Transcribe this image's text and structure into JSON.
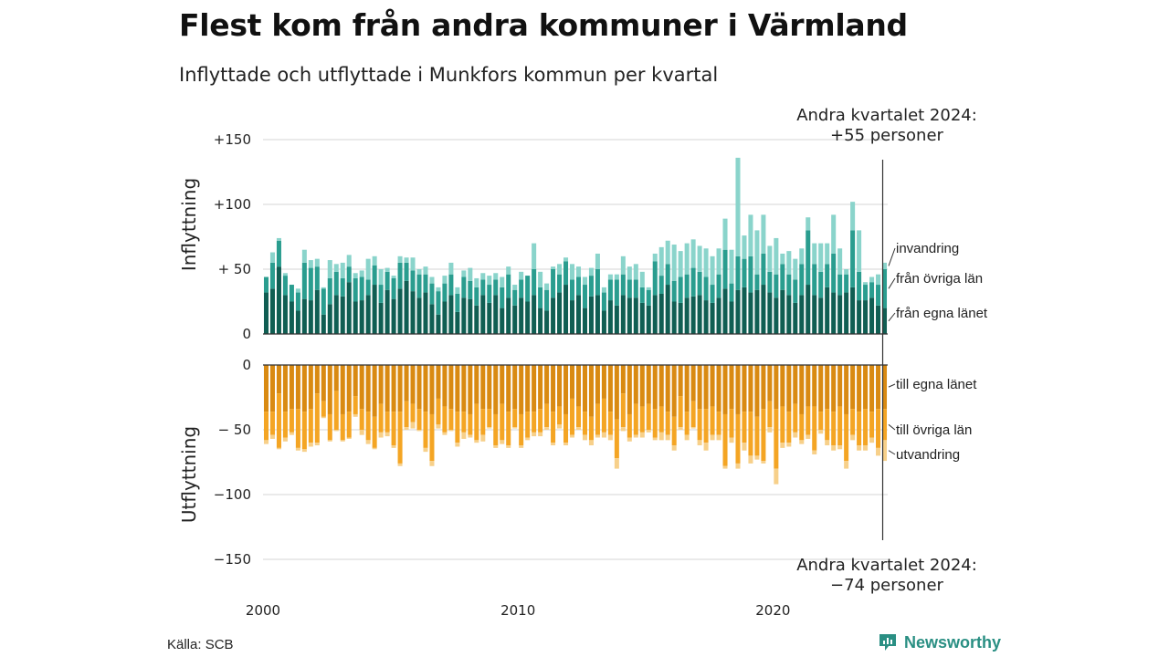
{
  "title": "Flest kom från andra kommuner i Värmland",
  "subtitle": "Inflyttade och utflyttade i Munkfors kommun per kvartal",
  "source": "Källa: SCB",
  "brand": "Newsworthy",
  "annotation_in": [
    "Andra kvartalet 2024:",
    "+55 personer"
  ],
  "annotation_out": [
    "Andra kvartalet 2024:",
    "−74 personer"
  ],
  "colors": {
    "in_own_county": "#105e53",
    "in_other_counties": "#2a9d8f",
    "in_immigration": "#8ad4cb",
    "out_own_county": "#d98a12",
    "out_other_counties": "#f4a524",
    "out_emigration": "#f7d08a",
    "grid": "#dddddd",
    "brand": "#2a8f83"
  },
  "chart_data": [
    {
      "type": "bar",
      "stacked": true,
      "ylabel": "Inflyttning",
      "ylim": [
        0,
        150
      ],
      "yticks": [
        {
          "value": 0,
          "label": "0"
        },
        {
          "value": 50,
          "label": "+ 50"
        },
        {
          "value": 100,
          "label": "+100"
        },
        {
          "value": 150,
          "label": "+150"
        }
      ],
      "xticks": [
        {
          "value": 2000,
          "label": "2000"
        },
        {
          "value": 2010,
          "label": "2010"
        },
        {
          "value": 2020,
          "label": "2020"
        }
      ],
      "x_start": "2000 Q1",
      "x_end": "2024 Q2",
      "grid": true,
      "series": [
        {
          "name": "från egna länet",
          "color_key": "in_own_county",
          "values": [
            32,
            35,
            52,
            30,
            25,
            18,
            27,
            26,
            34,
            15,
            23,
            30,
            29,
            40,
            25,
            26,
            30,
            38,
            24,
            34,
            27,
            35,
            41,
            33,
            28,
            32,
            23,
            15,
            25,
            30,
            17,
            28,
            27,
            22,
            30,
            24,
            30,
            20,
            28,
            22,
            28,
            25,
            30,
            20,
            18,
            28,
            32,
            38,
            26,
            30,
            20,
            29,
            30,
            18,
            26,
            22,
            30,
            28,
            28,
            24,
            22,
            30,
            31,
            38,
            25,
            24,
            28,
            29,
            30,
            26,
            24,
            28,
            35,
            25,
            34,
            36,
            32,
            34,
            38,
            32,
            28,
            34,
            30,
            24,
            30,
            38,
            30,
            28,
            36,
            32,
            30,
            32,
            36,
            26,
            26,
            28,
            22,
            20
          ]
        },
        {
          "name": "från övriga län",
          "color_key": "in_other_counties",
          "values": [
            12,
            20,
            20,
            15,
            13,
            14,
            28,
            25,
            18,
            20,
            20,
            18,
            14,
            12,
            18,
            18,
            12,
            15,
            14,
            14,
            16,
            20,
            14,
            16,
            18,
            14,
            16,
            18,
            14,
            16,
            14,
            16,
            14,
            14,
            12,
            14,
            12,
            16,
            18,
            12,
            14,
            20,
            20,
            16,
            16,
            22,
            14,
            18,
            16,
            14,
            18,
            16,
            20,
            14,
            16,
            20,
            16,
            14,
            14,
            12,
            12,
            26,
            14,
            16,
            16,
            20,
            18,
            22,
            18,
            18,
            14,
            18,
            30,
            14,
            26,
            22,
            28,
            12,
            24,
            16,
            18,
            20,
            16,
            18,
            24,
            42,
            24,
            20,
            18,
            30,
            16,
            14,
            44,
            22,
            12,
            12,
            16,
            30
          ]
        },
        {
          "name": "invandring",
          "color_key": "in_immigration",
          "values": [
            0,
            8,
            2,
            2,
            0,
            3,
            10,
            6,
            6,
            1,
            14,
            6,
            12,
            9,
            4,
            5,
            16,
            7,
            12,
            3,
            2,
            5,
            4,
            10,
            4,
            6,
            5,
            3,
            6,
            9,
            5,
            5,
            10,
            7,
            5,
            7,
            5,
            8,
            6,
            4,
            6,
            0,
            20,
            12,
            5,
            2,
            8,
            3,
            12,
            8,
            6,
            6,
            12,
            4,
            4,
            4,
            14,
            10,
            12,
            12,
            2,
            6,
            22,
            18,
            28,
            20,
            24,
            22,
            20,
            22,
            22,
            20,
            24,
            26,
            76,
            18,
            32,
            34,
            30,
            20,
            28,
            8,
            18,
            16,
            12,
            10,
            16,
            22,
            16,
            30,
            20,
            4,
            22,
            32,
            2,
            4,
            8,
            5
          ]
        }
      ]
    },
    {
      "type": "bar",
      "stacked": true,
      "ylabel": "Utflyttning",
      "ylim": [
        -150,
        0
      ],
      "yticks": [
        {
          "value": 0,
          "label": "0"
        },
        {
          "value": -50,
          "label": "− 50"
        },
        {
          "value": -100,
          "label": "−100"
        },
        {
          "value": -150,
          "label": "−150"
        }
      ],
      "x_start": "2000 Q1",
      "x_end": "2024 Q2",
      "grid": true,
      "series": [
        {
          "name": "till egna länet",
          "color_key": "out_own_county",
          "values": [
            -36,
            -36,
            -22,
            -36,
            -34,
            -34,
            -36,
            -34,
            -22,
            -28,
            -38,
            -20,
            -38,
            -36,
            -24,
            -34,
            -36,
            -40,
            -30,
            -36,
            -36,
            -36,
            -28,
            -30,
            -34,
            -36,
            -38,
            -26,
            -32,
            -34,
            -36,
            -36,
            -38,
            -30,
            -34,
            -34,
            -38,
            -30,
            -36,
            -34,
            -38,
            -36,
            -36,
            -34,
            -30,
            -36,
            -32,
            -38,
            -26,
            -32,
            -36,
            -40,
            -30,
            -26,
            -36,
            -42,
            -22,
            -38,
            -30,
            -32,
            -30,
            -34,
            -32,
            -36,
            -40,
            -24,
            -36,
            -28,
            -34,
            -34,
            -32,
            -36,
            -38,
            -34,
            -38,
            -36,
            -36,
            -40,
            -34,
            -28,
            -34,
            -32,
            -36,
            -30,
            -38,
            -32,
            -32,
            -36,
            -34,
            -36,
            -32,
            -38,
            -34,
            -36,
            -34,
            -36,
            -34,
            -34
          ]
        },
        {
          "name": "till övriga län",
          "color_key": "out_other_counties",
          "values": [
            -22,
            -18,
            -42,
            -20,
            -18,
            -30,
            -29,
            -26,
            -38,
            -12,
            -20,
            -30,
            -20,
            -20,
            -14,
            -16,
            -22,
            -24,
            -22,
            -16,
            -26,
            -40,
            -20,
            -14,
            -16,
            -28,
            -36,
            -20,
            -20,
            -16,
            -24,
            -16,
            -16,
            -28,
            -20,
            -14,
            -24,
            -28,
            -26,
            -14,
            -24,
            -20,
            -16,
            -18,
            -18,
            -24,
            -14,
            -22,
            -28,
            -16,
            -18,
            -18,
            -24,
            -26,
            -18,
            -30,
            -26,
            -18,
            -24,
            -20,
            -20,
            -22,
            -20,
            -18,
            -22,
            -24,
            -18,
            -20,
            -24,
            -26,
            -22,
            -18,
            -40,
            -22,
            -38,
            -24,
            -34,
            -30,
            -40,
            -20,
            -46,
            -28,
            -24,
            -22,
            -20,
            -22,
            -34,
            -14,
            -24,
            -26,
            -30,
            -36,
            -20,
            -26,
            -28,
            -20,
            -30,
            -24
          ]
        },
        {
          "name": "utvandring",
          "color_key": "out_emigration",
          "values": [
            -3,
            -3,
            -1,
            -3,
            -2,
            -2,
            -2,
            -3,
            -2,
            -1,
            -1,
            -1,
            -1,
            -1,
            -2,
            -4,
            -3,
            -1,
            -4,
            -3,
            -2,
            -2,
            -2,
            -5,
            -1,
            -3,
            -4,
            -3,
            -2,
            -1,
            -3,
            -5,
            -2,
            -2,
            -5,
            -1,
            -2,
            -3,
            -2,
            -1,
            -2,
            -2,
            -3,
            -3,
            -2,
            -2,
            -3,
            -2,
            -2,
            -2,
            -4,
            -4,
            -2,
            -4,
            -4,
            -8,
            -3,
            -3,
            -2,
            -4,
            -2,
            -2,
            -6,
            -4,
            -4,
            -2,
            -4,
            -1,
            -4,
            -6,
            -4,
            -4,
            -2,
            -4,
            -4,
            -6,
            -6,
            -3,
            -2,
            -4,
            -12,
            -4,
            -3,
            -4,
            -3,
            -3,
            -3,
            -3,
            -4,
            -4,
            -3,
            -6,
            -4,
            -4,
            -4,
            -4,
            -6,
            -16
          ]
        }
      ]
    }
  ]
}
